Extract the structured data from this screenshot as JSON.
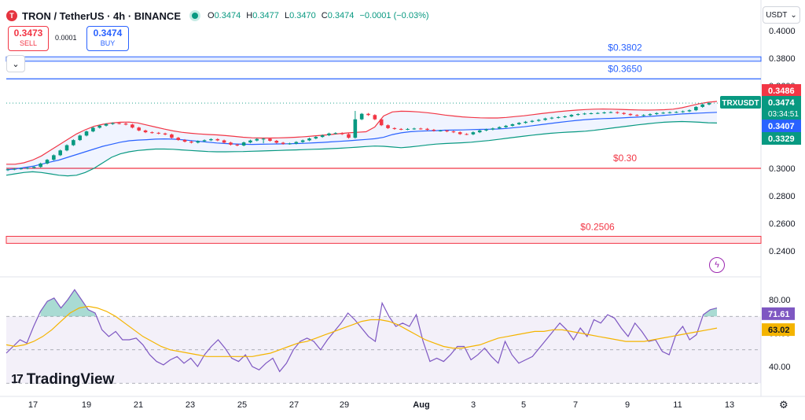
{
  "header": {
    "logo_glyph": "T",
    "symbol": "TRON / TetherUS · 4h · BINANCE",
    "ohlc": [
      {
        "k": "O",
        "v": "0.3474"
      },
      {
        "k": "H",
        "v": "0.3477"
      },
      {
        "k": "L",
        "v": "0.3470"
      },
      {
        "k": "C",
        "v": "0.3474"
      }
    ],
    "change": "−0.0001 (−0.03%)"
  },
  "trade": {
    "sell_price": "0.3473",
    "sell_label": "SELL",
    "spread": "0.0001",
    "buy_price": "0.3474",
    "buy_label": "BUY"
  },
  "currency": "USDT",
  "tradingview_logo": "TradingView",
  "chart_data": [
    {
      "type": "candlestick",
      "title": "TRXUSDT",
      "ylim": [
        0.23,
        0.41
      ],
      "y_ticks": [
        "0.4000",
        "0.3800",
        "0.3600",
        "0.3400",
        "0.3200",
        "0.3000",
        "0.2800",
        "0.2600",
        "0.2400"
      ],
      "x_ticks": [
        "17",
        "19",
        "21",
        "23",
        "25",
        "27",
        "29",
        "Aug",
        "3",
        "5",
        "7",
        "9",
        "11",
        "13"
      ],
      "price_path": [
        0.2992,
        0.2996,
        0.2999,
        0.3003,
        0.301,
        0.3035,
        0.3062,
        0.3095,
        0.313,
        0.3168,
        0.3205,
        0.3238,
        0.3268,
        0.3295,
        0.331,
        0.3322,
        0.3328,
        0.3325,
        0.3318,
        0.3296,
        0.3275,
        0.3262,
        0.3258,
        0.3253,
        0.3246,
        0.3222,
        0.3206,
        0.3194,
        0.3187,
        0.3197,
        0.3204,
        0.3212,
        0.3203,
        0.3187,
        0.3172,
        0.3166,
        0.3188,
        0.3202,
        0.3213,
        0.3215,
        0.32,
        0.3186,
        0.3178,
        0.318,
        0.3191,
        0.3203,
        0.3217,
        0.3228,
        0.324,
        0.3253,
        0.3256,
        0.3248,
        0.3222,
        0.3356,
        0.3396,
        0.3387,
        0.3356,
        0.3313,
        0.3292,
        0.3286,
        0.3283,
        0.3286,
        0.3289,
        0.3287,
        0.328,
        0.3273,
        0.3274,
        0.3268,
        0.3262,
        0.3249,
        0.3247,
        0.3262,
        0.3275,
        0.3282,
        0.329,
        0.3299,
        0.3309,
        0.332,
        0.333,
        0.3338,
        0.3345,
        0.3352,
        0.3362,
        0.3368,
        0.3372,
        0.3377,
        0.3388,
        0.3394,
        0.3398,
        0.34,
        0.3402,
        0.3406,
        0.3408,
        0.3402,
        0.3395,
        0.3387,
        0.3384,
        0.3387,
        0.3394,
        0.3401,
        0.3404,
        0.3407,
        0.3409,
        0.3414,
        0.3422,
        0.3446,
        0.3464,
        0.3474
      ],
      "series": [
        {
          "name": "",
          "color": "#2962ff",
          "values": [
            0.299,
            0.2995,
            0.3005,
            0.3015,
            0.303,
            0.3045,
            0.306,
            0.308,
            0.31,
            0.312,
            0.314,
            0.316,
            0.3175,
            0.319,
            0.32,
            0.3205,
            0.3208,
            0.3212,
            0.3214,
            0.3212,
            0.3208,
            0.3202,
            0.3196,
            0.319,
            0.3184,
            0.318,
            0.3177,
            0.3175,
            0.3174,
            0.3175,
            0.3176,
            0.3177,
            0.3178,
            0.318,
            0.3182,
            0.3185,
            0.3188,
            0.3192,
            0.3196,
            0.32,
            0.3205,
            0.321,
            0.3215,
            0.3225,
            0.3245,
            0.3258,
            0.3266,
            0.327,
            0.3272,
            0.3274,
            0.3277,
            0.3278,
            0.3279,
            0.3281,
            0.3283,
            0.3284,
            0.3286,
            0.329,
            0.3296,
            0.3302,
            0.331,
            0.3318,
            0.3326,
            0.3334,
            0.3341,
            0.3348,
            0.3354,
            0.3358,
            0.3361,
            0.3363,
            0.3366,
            0.3369,
            0.3372,
            0.3376,
            0.338,
            0.3385,
            0.339,
            0.3395,
            0.3398,
            0.3401,
            0.3404,
            0.3407
          ]
        },
        {
          "name": "",
          "color": "#f23645",
          "values": [
            0.303,
            0.303,
            0.304,
            0.306,
            0.309,
            0.313,
            0.317,
            0.321,
            0.325,
            0.328,
            0.3305,
            0.332,
            0.333,
            0.3335,
            0.3336,
            0.333,
            0.3315,
            0.33,
            0.3285,
            0.3272,
            0.3262,
            0.3255,
            0.325,
            0.3246,
            0.3243,
            0.3238,
            0.3232,
            0.3226,
            0.3222,
            0.322,
            0.322,
            0.3221,
            0.3223,
            0.3226,
            0.323,
            0.3235,
            0.324,
            0.3246,
            0.3252,
            0.3258,
            0.3262,
            0.3266,
            0.33,
            0.338,
            0.341,
            0.3415,
            0.3414,
            0.341,
            0.3404,
            0.3396,
            0.3387,
            0.338,
            0.3374,
            0.337,
            0.3367,
            0.3366,
            0.3366,
            0.337,
            0.3376,
            0.3382,
            0.339,
            0.3398,
            0.3405,
            0.3412,
            0.3418,
            0.3423,
            0.3427,
            0.343,
            0.3431,
            0.343,
            0.3428,
            0.3426,
            0.3424,
            0.3423,
            0.3424,
            0.3426,
            0.343,
            0.344,
            0.3455,
            0.347,
            0.348,
            0.3486
          ]
        },
        {
          "name": "",
          "color": "#089981",
          "values": [
            0.295,
            0.296,
            0.297,
            0.2975,
            0.297,
            0.296,
            0.295,
            0.2945,
            0.295,
            0.297,
            0.3,
            0.304,
            0.308,
            0.3105,
            0.312,
            0.313,
            0.3135,
            0.314,
            0.314,
            0.3138,
            0.3134,
            0.313,
            0.3126,
            0.3122,
            0.312,
            0.312,
            0.3121,
            0.3122,
            0.3124,
            0.3126,
            0.3128,
            0.313,
            0.3132,
            0.3134,
            0.3136,
            0.3138,
            0.314,
            0.3143,
            0.3146,
            0.315,
            0.3154,
            0.3158,
            0.3162,
            0.316,
            0.3155,
            0.315,
            0.3155,
            0.3162,
            0.317,
            0.3176,
            0.318,
            0.3183,
            0.3186,
            0.319,
            0.3196,
            0.3202,
            0.321,
            0.3218,
            0.3226,
            0.3234,
            0.3241,
            0.3248,
            0.3254,
            0.3259,
            0.3263,
            0.3266,
            0.327,
            0.3276,
            0.3284,
            0.3292,
            0.33,
            0.3308,
            0.3316,
            0.3323,
            0.333,
            0.3335,
            0.3338,
            0.334,
            0.3338,
            0.3335,
            0.3331,
            0.3329
          ]
        }
      ],
      "levels": [
        {
          "value": 0.3802,
          "label": "$0.3802",
          "color": "#2962ff",
          "band": [
            0.3778,
            0.381
          ]
        },
        {
          "value": 0.365,
          "label": "$0.3650",
          "color": "#2962ff"
        },
        {
          "value": 0.3,
          "label": "$0.30",
          "color": "#f23645"
        },
        {
          "value": 0.2506,
          "label": "$0.2506",
          "color": "#f23645",
          "band": [
            0.2455,
            0.2506
          ]
        }
      ],
      "dotted_level": 0.3474,
      "price_tags": [
        {
          "value": 0.3486,
          "text": "0.3486",
          "color": "#f23645"
        },
        {
          "value": 0.3474,
          "text": "0.3474",
          "sub": "03:34:51",
          "tag": "TRXUSDT",
          "color": "#089981"
        },
        {
          "value": 0.3407,
          "text": "0.3407",
          "color": "#2962ff"
        },
        {
          "value": 0.3329,
          "text": "0.3329",
          "color": "#089981"
        }
      ]
    },
    {
      "type": "line",
      "title": "RSI",
      "ylim": [
        25,
        95
      ],
      "y_ticks": [
        "80.00",
        "60.00",
        "40.00"
      ],
      "overbought": 70,
      "oversold": 30,
      "middle": 50,
      "series": [
        {
          "name": "",
          "color": "#7e57c2",
          "values": [
            48,
            52,
            56,
            54,
            64,
            73,
            79,
            81,
            75,
            80,
            86,
            80,
            74,
            72,
            62,
            58,
            61,
            56,
            56,
            57,
            53,
            47,
            43,
            41,
            44,
            46,
            42,
            45,
            40,
            47,
            52,
            56,
            51,
            45,
            43,
            47,
            40,
            38,
            42,
            45,
            37,
            42,
            50,
            55,
            57,
            55,
            50,
            56,
            61,
            66,
            72,
            68,
            63,
            58,
            55,
            78,
            70,
            64,
            66,
            64,
            71,
            55,
            43,
            45,
            43,
            47,
            52,
            52,
            44,
            47,
            51,
            46,
            42,
            55,
            47,
            42,
            44,
            46,
            51,
            56,
            61,
            66,
            62,
            56,
            63,
            58,
            68,
            66,
            71,
            69,
            63,
            58,
            66,
            61,
            55,
            56,
            49,
            47,
            59,
            64,
            56,
            59,
            71,
            74,
            75
          ]
        },
        {
          "name": "",
          "color": "#f4b400",
          "values": [
            53,
            52,
            53,
            55,
            58,
            62,
            67,
            72,
            75,
            76,
            75,
            73,
            70,
            66,
            62,
            58,
            55,
            52,
            50,
            49,
            48,
            47,
            46,
            46,
            46,
            46,
            46,
            46,
            47,
            48,
            50,
            52,
            54,
            55,
            57,
            59,
            61,
            63,
            65,
            67,
            68,
            68,
            67,
            65,
            62,
            59,
            56,
            54,
            52,
            51,
            51,
            52,
            53,
            55,
            57,
            58,
            59,
            60,
            61,
            61,
            62,
            62,
            61,
            60,
            59,
            58,
            57,
            56,
            55,
            55,
            55,
            56,
            57,
            58,
            59,
            60,
            61,
            62,
            63
          ]
        }
      ],
      "price_tags": [
        {
          "value": 71.61,
          "text": "71.61",
          "color": "#7e57c2"
        },
        {
          "value": 63.02,
          "text": "63.02",
          "color": "#f4b400"
        }
      ]
    }
  ]
}
